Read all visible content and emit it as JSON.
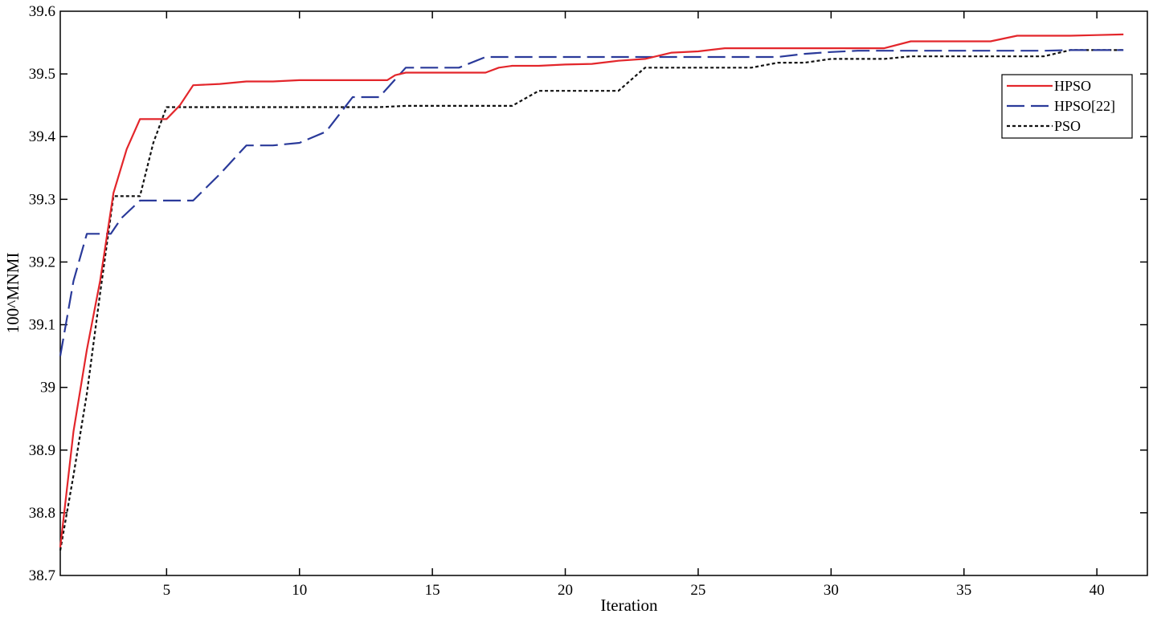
{
  "chart_data": {
    "type": "line",
    "title": "",
    "xlabel": "Iteration",
    "ylabel": "100^MNMI",
    "xlim": [
      1,
      41.9
    ],
    "ylim": [
      38.7,
      39.6
    ],
    "xticks": [
      5,
      10,
      15,
      20,
      25,
      30,
      35,
      40
    ],
    "yticks": [
      38.7,
      38.8,
      38.9,
      39,
      39.1,
      39.2,
      39.3,
      39.4,
      39.5,
      39.6
    ],
    "ytick_labels": [
      "38.7",
      "38.8",
      "38.9",
      "39",
      "39.1",
      "39.2",
      "39.3",
      "39.4",
      "39.5",
      "39.6"
    ],
    "grid": false,
    "legend_position": "top-right",
    "series": [
      {
        "name": "HPSO",
        "color": "#e3262b",
        "style": "solid",
        "points": [
          [
            1,
            38.745
          ],
          [
            1.5,
            38.93
          ],
          [
            2,
            39.06
          ],
          [
            2.5,
            39.17
          ],
          [
            3,
            39.31
          ],
          [
            3.5,
            39.38
          ],
          [
            4,
            39.428
          ],
          [
            4.5,
            39.428
          ],
          [
            5,
            39.428
          ],
          [
            5.5,
            39.45
          ],
          [
            6,
            39.482
          ],
          [
            7,
            39.484
          ],
          [
            8,
            39.488
          ],
          [
            9,
            39.488
          ],
          [
            10,
            39.49
          ],
          [
            11,
            39.49
          ],
          [
            12,
            39.49
          ],
          [
            13,
            39.49
          ],
          [
            13.3,
            39.49
          ],
          [
            13.6,
            39.498
          ],
          [
            14,
            39.502
          ],
          [
            15,
            39.502
          ],
          [
            16,
            39.502
          ],
          [
            17,
            39.502
          ],
          [
            17.5,
            39.51
          ],
          [
            18,
            39.513
          ],
          [
            19,
            39.513
          ],
          [
            20,
            39.515
          ],
          [
            21,
            39.516
          ],
          [
            22,
            39.521
          ],
          [
            23,
            39.524
          ],
          [
            24,
            39.534
          ],
          [
            25,
            39.536
          ],
          [
            26,
            39.541
          ],
          [
            27,
            39.541
          ],
          [
            28,
            39.541
          ],
          [
            29,
            39.541
          ],
          [
            30,
            39.541
          ],
          [
            31,
            39.541
          ],
          [
            32,
            39.541
          ],
          [
            33,
            39.552
          ],
          [
            34,
            39.552
          ],
          [
            35,
            39.552
          ],
          [
            36,
            39.552
          ],
          [
            37,
            39.561
          ],
          [
            38,
            39.561
          ],
          [
            39,
            39.561
          ],
          [
            40,
            39.562
          ],
          [
            41,
            39.563
          ]
        ]
      },
      {
        "name": "HPSO[22]",
        "color": "#2a3a9a",
        "style": "dashed",
        "points": [
          [
            1,
            39.05
          ],
          [
            1.5,
            39.17
          ],
          [
            2,
            39.245
          ],
          [
            2.5,
            39.245
          ],
          [
            2.9,
            39.245
          ],
          [
            3.3,
            39.27
          ],
          [
            4,
            39.298
          ],
          [
            5,
            39.298
          ],
          [
            6,
            39.298
          ],
          [
            7,
            39.34
          ],
          [
            8,
            39.386
          ],
          [
            9,
            39.386
          ],
          [
            10,
            39.39
          ],
          [
            11,
            39.408
          ],
          [
            12,
            39.463
          ],
          [
            13,
            39.463
          ],
          [
            14,
            39.51
          ],
          [
            15,
            39.51
          ],
          [
            16,
            39.51
          ],
          [
            17,
            39.527
          ],
          [
            18,
            39.527
          ],
          [
            19,
            39.527
          ],
          [
            20,
            39.527
          ],
          [
            21,
            39.527
          ],
          [
            22,
            39.527
          ],
          [
            23,
            39.527
          ],
          [
            24,
            39.527
          ],
          [
            25,
            39.527
          ],
          [
            26,
            39.527
          ],
          [
            27,
            39.527
          ],
          [
            28,
            39.527
          ],
          [
            29,
            39.532
          ],
          [
            30,
            39.535
          ],
          [
            31,
            39.537
          ],
          [
            32,
            39.537
          ],
          [
            33,
            39.537
          ],
          [
            34,
            39.537
          ],
          [
            35,
            39.537
          ],
          [
            36,
            39.537
          ],
          [
            37,
            39.537
          ],
          [
            38,
            39.537
          ],
          [
            39,
            39.538
          ],
          [
            40,
            39.538
          ],
          [
            41,
            39.538
          ]
        ]
      },
      {
        "name": "PSO",
        "color": "#111111",
        "style": "dotted",
        "points": [
          [
            1,
            38.74
          ],
          [
            1.5,
            38.86
          ],
          [
            2,
            38.99
          ],
          [
            2.5,
            39.15
          ],
          [
            3,
            39.305
          ],
          [
            3.5,
            39.305
          ],
          [
            4,
            39.305
          ],
          [
            4.5,
            39.39
          ],
          [
            5,
            39.447
          ],
          [
            6,
            39.447
          ],
          [
            7,
            39.447
          ],
          [
            8,
            39.447
          ],
          [
            9,
            39.447
          ],
          [
            10,
            39.447
          ],
          [
            11,
            39.447
          ],
          [
            12,
            39.447
          ],
          [
            13,
            39.447
          ],
          [
            14,
            39.449
          ],
          [
            15,
            39.449
          ],
          [
            16,
            39.449
          ],
          [
            17,
            39.449
          ],
          [
            18,
            39.449
          ],
          [
            19,
            39.473
          ],
          [
            20,
            39.473
          ],
          [
            21,
            39.473
          ],
          [
            22,
            39.473
          ],
          [
            23,
            39.51
          ],
          [
            24,
            39.51
          ],
          [
            25,
            39.51
          ],
          [
            26,
            39.51
          ],
          [
            27,
            39.51
          ],
          [
            28,
            39.518
          ],
          [
            29,
            39.518
          ],
          [
            30,
            39.524
          ],
          [
            31,
            39.524
          ],
          [
            32,
            39.524
          ],
          [
            33,
            39.528
          ],
          [
            34,
            39.528
          ],
          [
            35,
            39.528
          ],
          [
            36,
            39.528
          ],
          [
            37,
            39.528
          ],
          [
            38,
            39.528
          ],
          [
            39,
            39.538
          ],
          [
            40,
            39.538
          ],
          [
            41,
            39.538
          ]
        ]
      }
    ]
  }
}
